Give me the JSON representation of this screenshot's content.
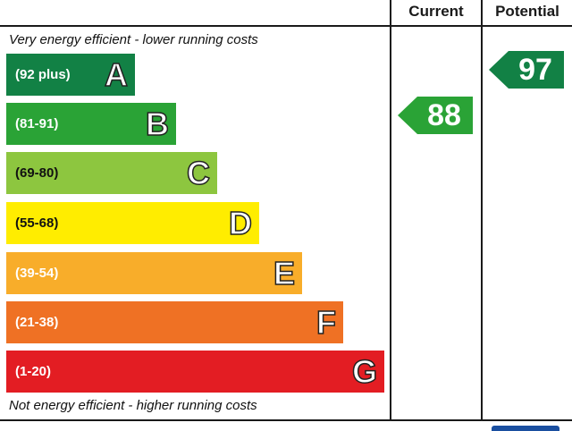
{
  "headers": {
    "current": "Current",
    "potential": "Potential"
  },
  "notes": {
    "top": "Very energy efficient - lower running costs",
    "bottom": "Not energy efficient - higher running costs"
  },
  "chart_data": {
    "type": "bar",
    "categories": [
      "A",
      "B",
      "C",
      "D",
      "E",
      "F",
      "G"
    ],
    "bands": [
      {
        "letter": "A",
        "range": "(92 plus)",
        "color": "#128145"
      },
      {
        "letter": "B",
        "range": "(81-91)",
        "color": "#2aa336"
      },
      {
        "letter": "C",
        "range": "(69-80)",
        "color": "#8dc63f"
      },
      {
        "letter": "D",
        "range": "(55-68)",
        "color": "#ffed00"
      },
      {
        "letter": "E",
        "range": "(39-54)",
        "color": "#f8ad2a"
      },
      {
        "letter": "F",
        "range": "(21-38)",
        "color": "#ef7124"
      },
      {
        "letter": "G",
        "range": "(1-20)",
        "color": "#e31d23"
      }
    ],
    "current": {
      "value": "88",
      "band": "B",
      "color": "#2aa336"
    },
    "potential": {
      "value": "97",
      "band": "A",
      "color": "#128145"
    }
  }
}
